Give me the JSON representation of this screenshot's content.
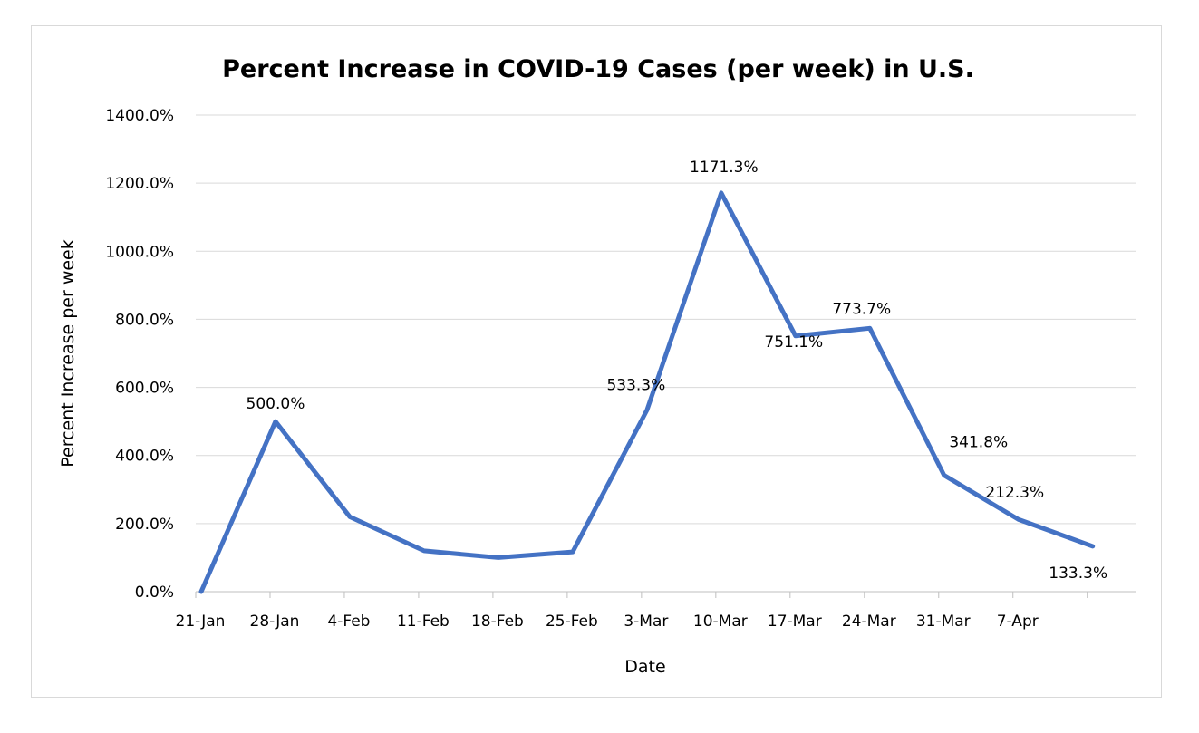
{
  "chart_data": {
    "type": "line",
    "title": "Percent Increase in COVID-19 Cases (per week) in U.S.",
    "xlabel": "Date",
    "ylabel": "Percent Increase per week",
    "ylim": [
      0,
      1400
    ],
    "y_ticks": [
      "0.0%",
      "200.0%",
      "400.0%",
      "600.0%",
      "800.0%",
      "1000.0%",
      "1200.0%",
      "1400.0%"
    ],
    "categories": [
      "21-Jan",
      "28-Jan",
      "4-Feb",
      "11-Feb",
      "18-Feb",
      "25-Feb",
      "3-Mar",
      "10-Mar",
      "17-Mar",
      "24-Mar",
      "31-Mar",
      "7-Apr",
      ""
    ],
    "grid": true,
    "legend": "none",
    "series": [
      {
        "color": "#4472C4",
        "values": [
          0,
          500.0,
          220,
          120,
          100,
          116.7,
          533.3,
          1171.3,
          751.1,
          773.7,
          341.8,
          212.3,
          133.3
        ],
        "data_labels": [
          "",
          "500.0%",
          "",
          "",
          "",
          "",
          "533.3%",
          "1171.3%",
          "751.1%",
          "773.7%",
          "341.8%",
          "212.3%",
          "133.3%"
        ]
      }
    ]
  }
}
